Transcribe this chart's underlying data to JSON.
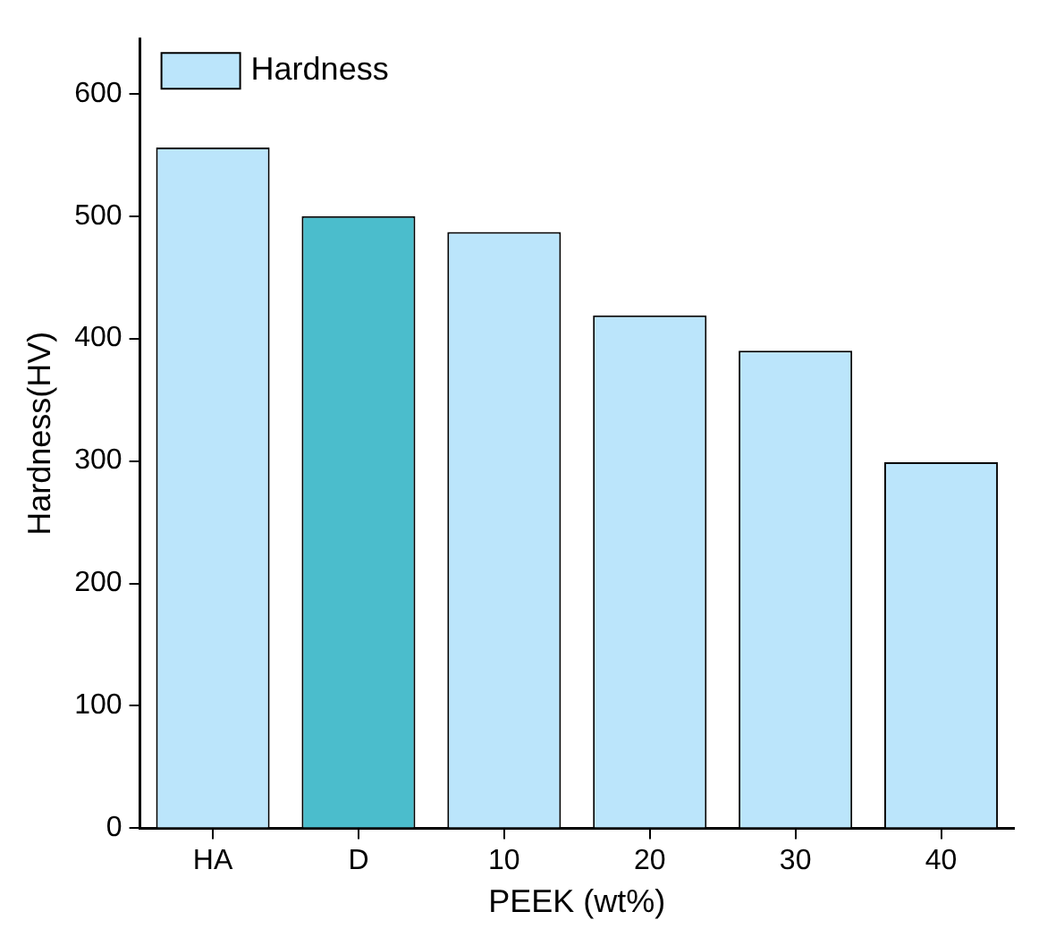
{
  "chart_data": {
    "type": "bar",
    "xlabel": "PEEK (wt%)",
    "ylabel": "Hardness(HV)",
    "categories": [
      "HA",
      "D",
      "10",
      "20",
      "30",
      "40"
    ],
    "series": [
      {
        "name": "Hardness",
        "color": "#bbe5fb",
        "colors": [
          "#bbe5fb",
          "#4bbdcc",
          "#bbe5fb",
          "#bbe5fb",
          "#bbe5fb",
          "#bbe5fb"
        ],
        "values": [
          556,
          500,
          487,
          419,
          390,
          299
        ]
      }
    ],
    "ylim": [
      0,
      645
    ],
    "yticks": [
      0,
      100,
      200,
      300,
      400,
      500,
      600
    ],
    "grid": false,
    "legend": "top left"
  }
}
